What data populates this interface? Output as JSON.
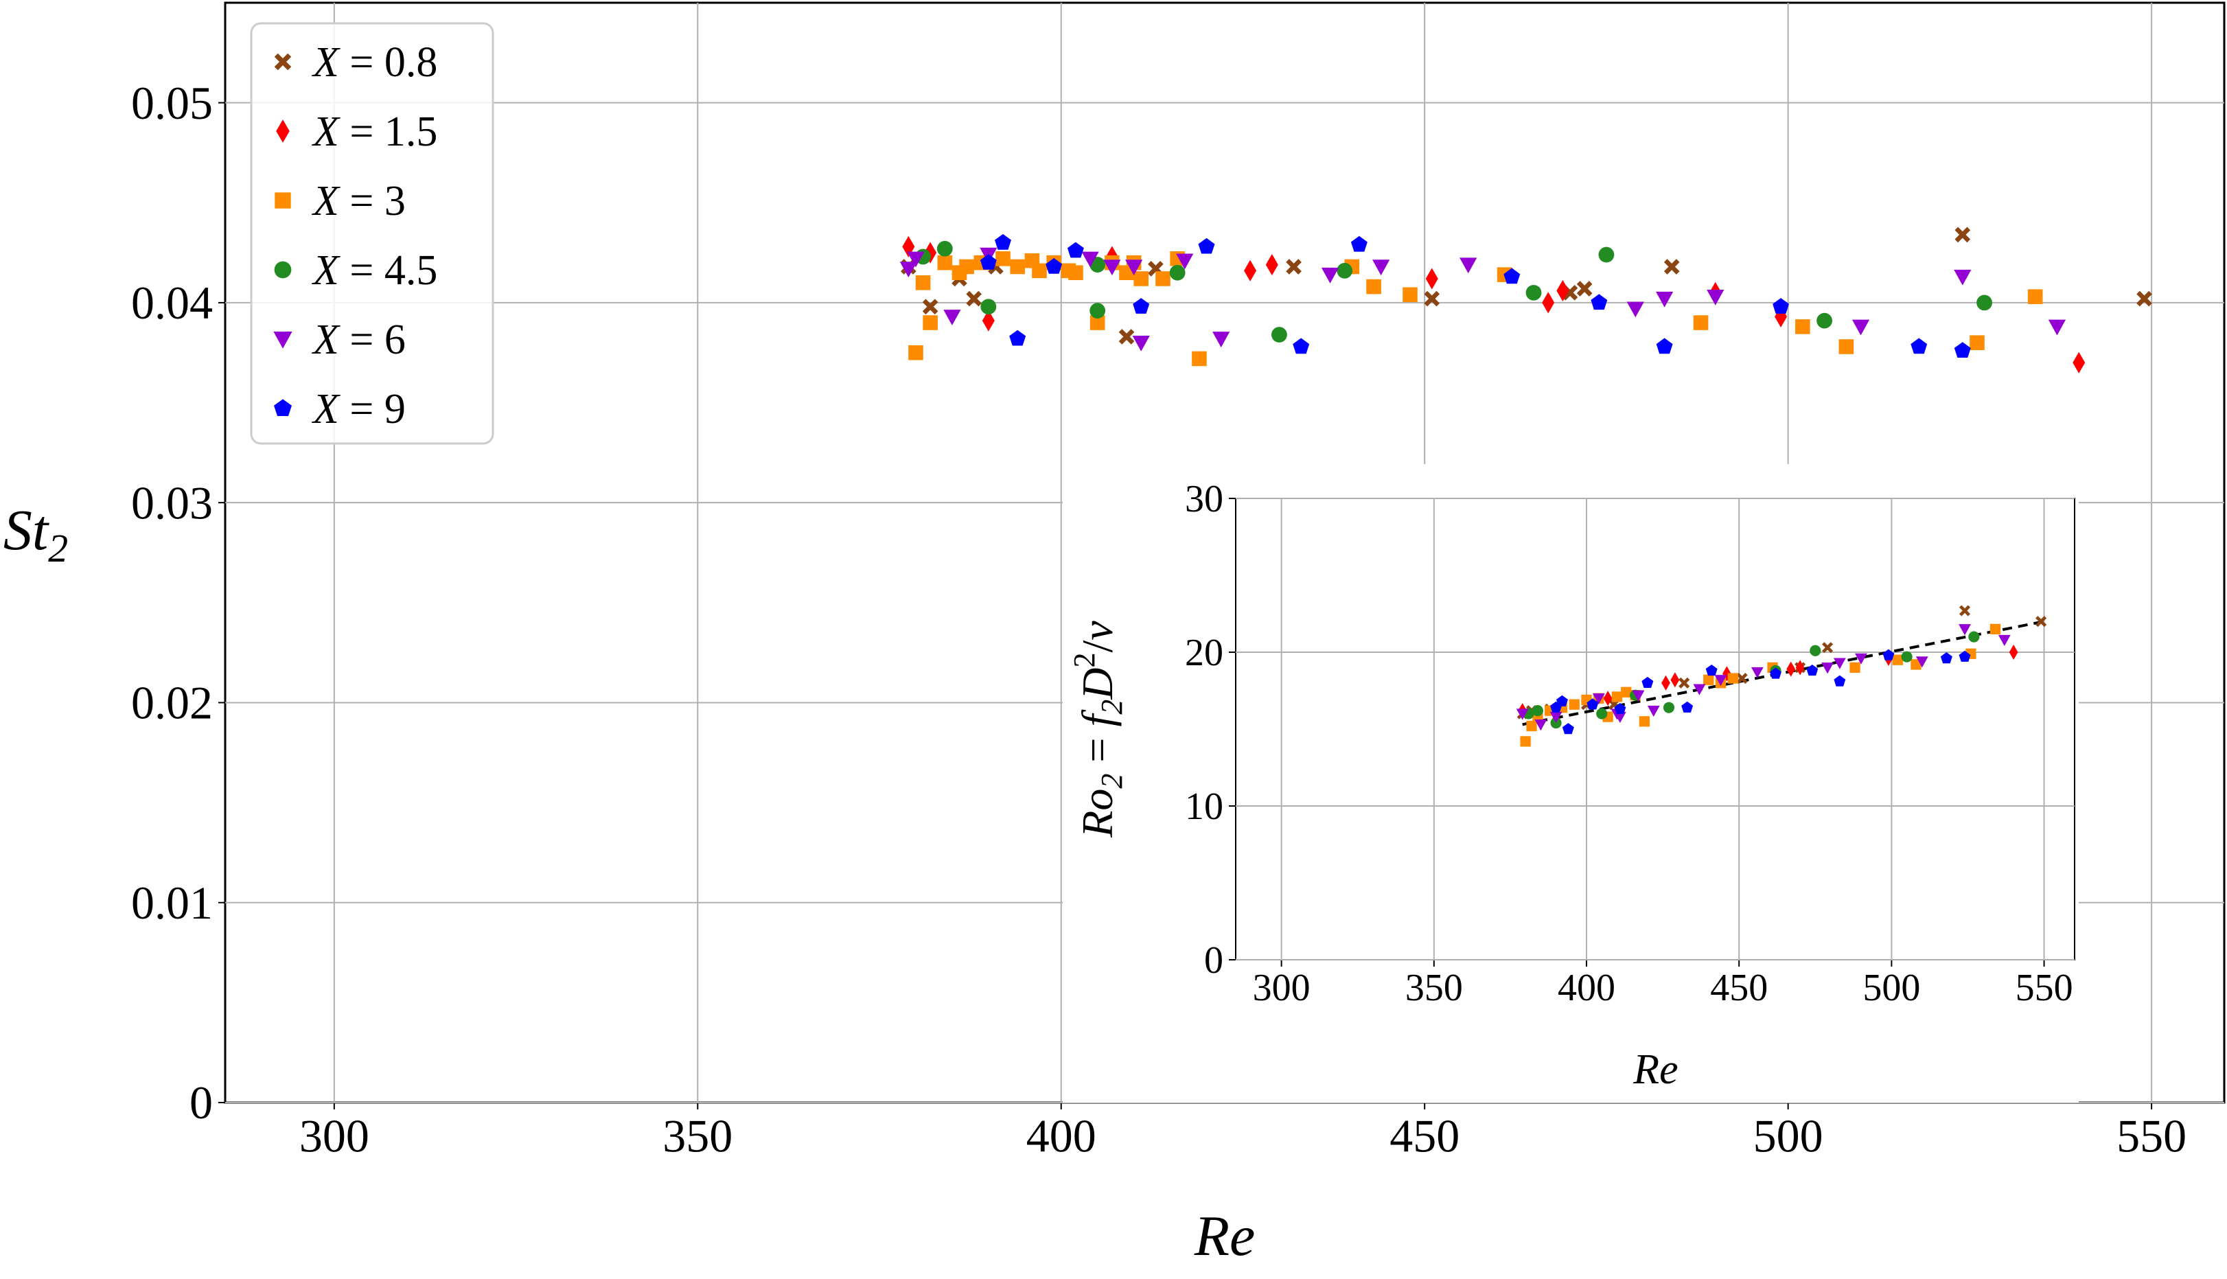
{
  "chart_data": [
    {
      "type": "scatter",
      "xlabel": "Re",
      "ylabel": "St_2",
      "xlim": [
        285,
        560
      ],
      "ylim": [
        0,
        0.055
      ],
      "xticks": [
        "300",
        "350",
        "400",
        "450",
        "500",
        "550"
      ],
      "yticks": [
        "0",
        "0.01",
        "0.02",
        "0.03",
        "0.04",
        "0.05"
      ],
      "grid": true,
      "legend_position": "top-left",
      "series": [
        {
          "name": "X = 0.8",
          "marker": "x",
          "color": "#8b4513",
          "points": [
            [
              379,
              0.0418
            ],
            [
              382,
              0.0398
            ],
            [
              388,
              0.0402
            ],
            [
              391,
              0.0418
            ],
            [
              409,
              0.0383
            ],
            [
              413,
              0.0417
            ],
            [
              432,
              0.0418
            ],
            [
              451,
              0.0402
            ],
            [
              470,
              0.0405
            ],
            [
              472,
              0.0407
            ],
            [
              484,
              0.0418
            ],
            [
              524,
              0.0434
            ],
            [
              549,
              0.0402
            ],
            [
              386,
              0.0412
            ]
          ]
        },
        {
          "name": "X = 1.5",
          "marker": "diamond",
          "color": "#ff0000",
          "points": [
            [
              379,
              0.0428
            ],
            [
              390,
              0.0391
            ],
            [
              407,
              0.0423
            ],
            [
              426,
              0.0416
            ],
            [
              429,
              0.0419
            ],
            [
              451,
              0.0412
            ],
            [
              467,
              0.04
            ],
            [
              469,
              0.0406
            ],
            [
              490,
              0.0405
            ],
            [
              499,
              0.0393
            ],
            [
              540,
              0.037
            ],
            [
              382,
              0.0425
            ]
          ]
        },
        {
          "name": "X = 3",
          "marker": "square",
          "color": "#ff8c00",
          "points": [
            [
              380,
              0.0375
            ],
            [
              381,
              0.041
            ],
            [
              382,
              0.039
            ],
            [
              384,
              0.042
            ],
            [
              386,
              0.0415
            ],
            [
              387,
              0.0418
            ],
            [
              389,
              0.042
            ],
            [
              392,
              0.0422
            ],
            [
              394,
              0.0418
            ],
            [
              396,
              0.0421
            ],
            [
              397,
              0.0416
            ],
            [
              399,
              0.042
            ],
            [
              401,
              0.0416
            ],
            [
              402,
              0.0415
            ],
            [
              405,
              0.039
            ],
            [
              407,
              0.042
            ],
            [
              409,
              0.0415
            ],
            [
              410,
              0.042
            ],
            [
              411,
              0.0412
            ],
            [
              414,
              0.0412
            ],
            [
              416,
              0.0422
            ],
            [
              419,
              0.0372
            ],
            [
              440,
              0.0418
            ],
            [
              443,
              0.0408
            ],
            [
              448,
              0.0404
            ],
            [
              461,
              0.0414
            ],
            [
              488,
              0.039
            ],
            [
              502,
              0.0388
            ],
            [
              508,
              0.0378
            ],
            [
              526,
              0.038
            ],
            [
              534,
              0.0403
            ]
          ]
        },
        {
          "name": "X = 4.5",
          "marker": "circle",
          "color": "#228b22",
          "points": [
            [
              381,
              0.0423
            ],
            [
              384,
              0.0427
            ],
            [
              390,
              0.0398
            ],
            [
              405,
              0.0396
            ],
            [
              405,
              0.0419
            ],
            [
              416,
              0.0415
            ],
            [
              430,
              0.0384
            ],
            [
              439,
              0.0416
            ],
            [
              465,
              0.0405
            ],
            [
              475,
              0.0424
            ],
            [
              505,
              0.0391
            ],
            [
              527,
              0.04
            ]
          ]
        },
        {
          "name": "X = 6",
          "marker": "triangle-down",
          "color": "#9400d3",
          "points": [
            [
              379,
              0.0417
            ],
            [
              380,
              0.0422
            ],
            [
              385,
              0.0393
            ],
            [
              390,
              0.0424
            ],
            [
              404,
              0.0422
            ],
            [
              407,
              0.0418
            ],
            [
              410,
              0.0418
            ],
            [
              411,
              0.038
            ],
            [
              417,
              0.0421
            ],
            [
              422,
              0.0382
            ],
            [
              437,
              0.0414
            ],
            [
              444,
              0.0418
            ],
            [
              456,
              0.0419
            ],
            [
              479,
              0.0397
            ],
            [
              483,
              0.0402
            ],
            [
              490,
              0.0403
            ],
            [
              510,
              0.0388
            ],
            [
              524,
              0.0413
            ],
            [
              537,
              0.0388
            ]
          ]
        },
        {
          "name": "X = 9",
          "marker": "pentagon",
          "color": "#0000ff",
          "points": [
            [
              390,
              0.042
            ],
            [
              392,
              0.043
            ],
            [
              394,
              0.0382
            ],
            [
              399,
              0.0418
            ],
            [
              402,
              0.0426
            ],
            [
              411,
              0.0398
            ],
            [
              420,
              0.0428
            ],
            [
              433,
              0.0378
            ],
            [
              441,
              0.0429
            ],
            [
              462,
              0.0413
            ],
            [
              474,
              0.04
            ],
            [
              483,
              0.0378
            ],
            [
              499,
              0.0398
            ],
            [
              518,
              0.0378
            ],
            [
              524,
              0.0376
            ]
          ]
        }
      ]
    },
    {
      "type": "scatter",
      "inset": true,
      "xlabel": "Re",
      "ylabel": "Ro_2 = f_2 D^2/ν",
      "xlim": [
        285,
        560
      ],
      "ylim": [
        0,
        30
      ],
      "xticks": [
        "300",
        "350",
        "400",
        "450",
        "500",
        "550"
      ],
      "yticks": [
        "0",
        "10",
        "20",
        "30"
      ],
      "grid": true,
      "fit_line": {
        "style": "dashed",
        "color": "#000000",
        "points": [
          [
            379,
            15.3
          ],
          [
            550,
            22.0
          ]
        ]
      },
      "series": [
        {
          "name": "X = 0.8",
          "marker": "x",
          "color": "#8b4513",
          "points": [
            [
              379,
              16.0
            ],
            [
              382,
              16.2
            ],
            [
              388,
              16.3
            ],
            [
              400,
              16.6
            ],
            [
              409,
              16.6
            ],
            [
              432,
              18.0
            ],
            [
              451,
              18.3
            ],
            [
              470,
              19.0
            ],
            [
              479,
              20.3
            ],
            [
              524,
              22.7
            ],
            [
              549,
              22.0
            ]
          ]
        },
        {
          "name": "X = 1.5",
          "marker": "diamond",
          "color": "#ff0000",
          "points": [
            [
              379,
              16.2
            ],
            [
              390,
              15.6
            ],
            [
              407,
              17.0
            ],
            [
              426,
              18.0
            ],
            [
              429,
              18.2
            ],
            [
              446,
              18.6
            ],
            [
              467,
              18.9
            ],
            [
              470,
              19.0
            ],
            [
              499,
              19.6
            ],
            [
              540,
              20.0
            ]
          ]
        },
        {
          "name": "X = 3",
          "marker": "square",
          "color": "#ff8c00",
          "points": [
            [
              380,
              14.2
            ],
            [
              382,
              15.2
            ],
            [
              384,
              15.8
            ],
            [
              388,
              16.2
            ],
            [
              392,
              16.4
            ],
            [
              396,
              16.6
            ],
            [
              400,
              16.9
            ],
            [
              404,
              17.0
            ],
            [
              407,
              15.8
            ],
            [
              410,
              17.1
            ],
            [
              413,
              17.4
            ],
            [
              416,
              17.2
            ],
            [
              419,
              15.5
            ],
            [
              440,
              18.2
            ],
            [
              444,
              18.0
            ],
            [
              448,
              18.3
            ],
            [
              461,
              19.0
            ],
            [
              488,
              19.0
            ],
            [
              502,
              19.5
            ],
            [
              508,
              19.2
            ],
            [
              526,
              19.9
            ],
            [
              534,
              21.5
            ]
          ]
        },
        {
          "name": "X = 4.5",
          "marker": "circle",
          "color": "#228b22",
          "points": [
            [
              381,
              16.0
            ],
            [
              384,
              16.2
            ],
            [
              390,
              15.4
            ],
            [
              405,
              16.0
            ],
            [
              416,
              17.2
            ],
            [
              427,
              16.4
            ],
            [
              462,
              18.8
            ],
            [
              475,
              20.1
            ],
            [
              505,
              19.7
            ],
            [
              527,
              21.0
            ]
          ]
        },
        {
          "name": "X = 6",
          "marker": "triangle-down",
          "color": "#9400d3",
          "points": [
            [
              379,
              16.0
            ],
            [
              385,
              15.3
            ],
            [
              390,
              15.8
            ],
            [
              404,
              17.0
            ],
            [
              410,
              16.0
            ],
            [
              411,
              15.8
            ],
            [
              417,
              17.2
            ],
            [
              422,
              16.2
            ],
            [
              437,
              17.6
            ],
            [
              444,
              18.2
            ],
            [
              456,
              18.7
            ],
            [
              479,
              19.0
            ],
            [
              483,
              19.3
            ],
            [
              490,
              19.6
            ],
            [
              510,
              19.4
            ],
            [
              524,
              21.5
            ],
            [
              537,
              20.8
            ]
          ]
        },
        {
          "name": "X = 9",
          "marker": "pentagon",
          "color": "#0000ff",
          "points": [
            [
              390,
              16.4
            ],
            [
              392,
              16.8
            ],
            [
              394,
              15.0
            ],
            [
              402,
              16.6
            ],
            [
              411,
              16.3
            ],
            [
              420,
              18.0
            ],
            [
              433,
              16.4
            ],
            [
              441,
              18.8
            ],
            [
              462,
              18.6
            ],
            [
              474,
              18.8
            ],
            [
              483,
              18.1
            ],
            [
              499,
              19.8
            ],
            [
              518,
              19.6
            ],
            [
              524,
              19.7
            ]
          ]
        }
      ]
    }
  ]
}
